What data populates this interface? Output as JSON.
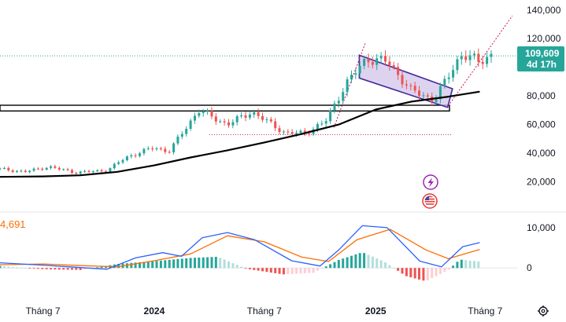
{
  "colors": {
    "up": "#26a69a",
    "down": "#ef5350",
    "ma": "#000000",
    "macd_line": "#2962ff",
    "signal_line": "#ff6d00",
    "hist_up_strong": "#26a69a",
    "hist_up_weak": "#b2dfdb",
    "hist_down_strong": "#ef5350",
    "hist_down_weak": "#ffcdd2",
    "channel_fill": "#d1c4e9",
    "channel_line": "#4527a0",
    "dotted_projection": "#c2185b",
    "current_line": "#26a69a",
    "event_icon_purple": "#9c27b0",
    "event_icon_red": "#e53935"
  },
  "icons": [
    "lightning-event-icon",
    "us-flag-event-icon",
    "settings-gear-icon"
  ],
  "macd_panel_label": "4,691",
  "price_tag": {
    "price": "109,609",
    "countdown": "4d 17h"
  },
  "chart_data": {
    "type": "candlestick",
    "price_axis": {
      "ticks": [
        "140,000",
        "120,000",
        "80,000",
        "60,000",
        "40,000",
        "20,000"
      ],
      "tick_values": [
        140000,
        120000,
        80000,
        60000,
        40000,
        20000
      ],
      "range": [
        0,
        147000
      ]
    },
    "macd_axis": {
      "ticks": [
        "10,000",
        "0"
      ],
      "tick_values": [
        10000,
        0
      ],
      "range": [
        -6000,
        13500
      ]
    },
    "time_axis": {
      "labels": [
        "Tháng 7",
        "2024",
        "Tháng 7",
        "2025",
        "Tháng 7"
      ],
      "label_dates": [
        "2023-07",
        "2024-01",
        "2024-07",
        "2025-01",
        "2025-07"
      ],
      "bold": [
        false,
        true,
        false,
        true,
        false
      ]
    },
    "time_range": [
      "2023-04-21",
      "2025-08-23"
    ],
    "candle_period": "1 week",
    "current_price": 109609,
    "ma_series": [
      [
        "2023-04-21",
        23500
      ],
      [
        "2023-07-01",
        23800
      ],
      [
        "2023-09-01",
        24600
      ],
      [
        "2023-11-01",
        27000
      ],
      [
        "2024-01-01",
        31500
      ],
      [
        "2024-03-01",
        37000
      ],
      [
        "2024-05-01",
        42000
      ],
      [
        "2024-07-01",
        47500
      ],
      [
        "2024-09-01",
        53500
      ],
      [
        "2024-11-01",
        60000
      ],
      [
        "2025-01-01",
        70500
      ],
      [
        "2025-03-01",
        76000
      ],
      [
        "2025-05-01",
        79500
      ],
      [
        "2025-06-22",
        83000
      ]
    ],
    "price_path": [
      [
        "2023-04-21",
        29000
      ],
      [
        "2023-06-01",
        27000
      ],
      [
        "2023-07-10",
        30500
      ],
      [
        "2023-08-25",
        26500
      ],
      [
        "2023-10-15",
        28000
      ],
      [
        "2023-11-15",
        37000
      ],
      [
        "2024-01-01",
        44000
      ],
      [
        "2024-01-25",
        41000
      ],
      [
        "2024-03-14",
        70000
      ],
      [
        "2024-05-01",
        60000
      ],
      [
        "2024-06-10",
        69000
      ],
      [
        "2024-08-05",
        54000
      ],
      [
        "2024-09-06",
        54000
      ],
      [
        "2024-10-10",
        62000
      ],
      [
        "2024-11-12",
        88000
      ],
      [
        "2024-12-17",
        106000
      ],
      [
        "2025-01-21",
        104000
      ],
      [
        "2025-02-28",
        84000
      ],
      [
        "2025-04-08",
        77000
      ],
      [
        "2025-05-22",
        109000
      ],
      [
        "2025-06-22",
        104000
      ],
      [
        "2025-07-14",
        109609
      ]
    ],
    "drawings": {
      "support_rectangle": {
        "top": 73500,
        "bottom": 69500,
        "from": "2023-04-21",
        "to": "2025-08-23"
      },
      "dotted_level": {
        "price": 108000,
        "from": "2023-04-21",
        "to": "2025-07-20"
      },
      "red_dotted_hline": {
        "price": 53000,
        "from": "2024-04-01",
        "to": "2025-05-08"
      },
      "descending_channel": [
        [
          "2024-12-05",
          108500
        ],
        [
          "2025-05-08",
          85000
        ],
        [
          "2025-04-30",
          72000
        ],
        [
          "2024-12-05",
          92500
        ]
      ],
      "projection_left": [
        [
          "2024-10-24",
          58000
        ],
        [
          "2024-12-15",
          117000
        ]
      ],
      "projection_right": [
        [
          "2025-05-01",
          73000
        ],
        [
          "2025-08-15",
          136000
        ]
      ]
    },
    "macd": {
      "macd_line": [
        [
          "2023-04-21",
          1300
        ],
        [
          "2023-07-01",
          700
        ],
        [
          "2023-09-01",
          100
        ],
        [
          "2023-10-15",
          -300
        ],
        [
          "2023-12-01",
          2500
        ],
        [
          "2024-01-15",
          3800
        ],
        [
          "2024-02-15",
          2900
        ],
        [
          "2024-03-20",
          7500
        ],
        [
          "2024-05-01",
          8800
        ],
        [
          "2024-06-15",
          7000
        ],
        [
          "2024-08-15",
          1800
        ],
        [
          "2024-10-01",
          500
        ],
        [
          "2024-11-01",
          4500
        ],
        [
          "2024-12-10",
          10500
        ],
        [
          "2025-01-20",
          10000
        ],
        [
          "2025-03-15",
          1700
        ],
        [
          "2025-04-20",
          300
        ],
        [
          "2025-05-25",
          5300
        ],
        [
          "2025-06-22",
          6300
        ]
      ],
      "signal_line": [
        [
          "2023-04-21",
          800
        ],
        [
          "2023-07-01",
          1000
        ],
        [
          "2023-09-01",
          600
        ],
        [
          "2023-11-01",
          300
        ],
        [
          "2024-01-01",
          1800
        ],
        [
          "2024-03-01",
          3500
        ],
        [
          "2024-05-01",
          8000
        ],
        [
          "2024-07-01",
          6500
        ],
        [
          "2024-09-01",
          2700
        ],
        [
          "2024-10-15",
          1600
        ],
        [
          "2024-12-01",
          7000
        ],
        [
          "2025-01-25",
          9600
        ],
        [
          "2025-03-25",
          4500
        ],
        [
          "2025-05-01",
          2300
        ],
        [
          "2025-06-22",
          4600
        ]
      ],
      "histogram": [
        [
          "2023-04-21",
          500
        ],
        [
          "2023-07-01",
          -300
        ],
        [
          "2023-09-01",
          -500
        ],
        [
          "2023-11-01",
          1000
        ],
        [
          "2024-01-01",
          1700
        ],
        [
          "2024-03-01",
          2500
        ],
        [
          "2024-04-15",
          2800
        ],
        [
          "2024-06-01",
          -200
        ],
        [
          "2024-08-01",
          -1600
        ],
        [
          "2024-09-20",
          -1200
        ],
        [
          "2024-11-01",
          2000
        ],
        [
          "2024-12-10",
          3900
        ],
        [
          "2025-01-15",
          1600
        ],
        [
          "2025-02-20",
          -2000
        ],
        [
          "2025-03-25",
          -3300
        ],
        [
          "2025-05-01",
          -500
        ],
        [
          "2025-05-20",
          2100
        ],
        [
          "2025-06-22",
          1600
        ]
      ]
    }
  }
}
